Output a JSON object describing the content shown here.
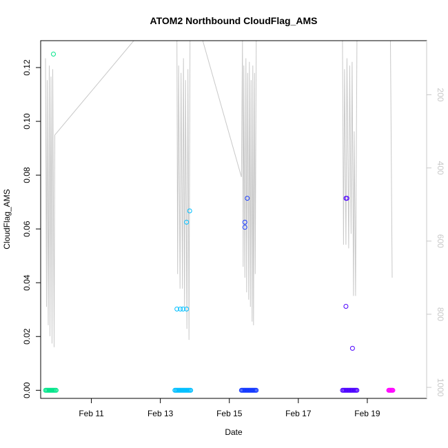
{
  "chart_data": {
    "type": "scatter",
    "title": "ATOM2 Northbound CloudFlag_AMS",
    "xlabel": "Date",
    "ylabel": "CloudFlag_AMS",
    "x_ticks": [
      "Feb 11",
      "Feb 13",
      "Feb 15",
      "Feb 17",
      "Feb 19"
    ],
    "x_tick_days": [
      11,
      13,
      15,
      17,
      19
    ],
    "xlim_days": [
      9.53,
      20.72
    ],
    "ylim": [
      -0.003,
      0.13
    ],
    "y_ticks": [
      "0.00",
      "0.02",
      "0.04",
      "0.06",
      "0.08",
      "0.10",
      "0.12"
    ],
    "y_tick_values": [
      0.0,
      0.02,
      0.04,
      0.06,
      0.08,
      0.1,
      0.12
    ],
    "right_axis": {
      "label": "",
      "reversed": true,
      "ticks": [
        "200",
        "400",
        "600",
        "800",
        "1000"
      ],
      "tick_values": [
        200,
        400,
        600,
        800,
        1000
      ],
      "lim": [
        52,
        1030
      ],
      "color": "#c8c8c8"
    },
    "points": [
      {
        "day": 9.9,
        "value": 0.125,
        "color": "#00e58a"
      },
      {
        "day": 13.48,
        "value": 0.0302,
        "color": "#00bfff"
      },
      {
        "day": 13.58,
        "value": 0.0302,
        "color": "#00bfff"
      },
      {
        "day": 13.66,
        "value": 0.0302,
        "color": "#00bfff"
      },
      {
        "day": 13.76,
        "value": 0.0302,
        "color": "#00bfff"
      },
      {
        "day": 13.76,
        "value": 0.0625,
        "color": "#00bfff"
      },
      {
        "day": 13.85,
        "value": 0.0667,
        "color": "#00bfff"
      },
      {
        "day": 15.45,
        "value": 0.0625,
        "color": "#1338ff"
      },
      {
        "day": 15.45,
        "value": 0.0606,
        "color": "#1338ff"
      },
      {
        "day": 15.52,
        "value": 0.0714,
        "color": "#1338ff"
      },
      {
        "day": 18.38,
        "value": 0.0714,
        "color": "#4c00ff"
      },
      {
        "day": 18.41,
        "value": 0.0714,
        "color": "#4c00ff"
      },
      {
        "day": 18.38,
        "value": 0.0312,
        "color": "#4c00ff"
      },
      {
        "day": 18.57,
        "value": 0.0156,
        "color": "#4c00ff"
      }
    ],
    "zero_runs": [
      {
        "from": 9.67,
        "to": 9.98,
        "color": "#00e58a"
      },
      {
        "from": 13.42,
        "to": 13.88,
        "color": "#00bfff"
      },
      {
        "from": 15.35,
        "to": 15.78,
        "color": "#1338ff"
      },
      {
        "from": 18.28,
        "to": 18.7,
        "color": "#4c00ff"
      },
      {
        "from": 19.62,
        "to": 19.74,
        "color": "#ff00ff"
      }
    ],
    "altitude_color": "#c8c8c8",
    "altitude_trace": [
      [
        9.67,
        100
      ],
      [
        9.7,
        780
      ],
      [
        9.72,
        160
      ],
      [
        9.75,
        830
      ],
      [
        9.78,
        120
      ],
      [
        9.8,
        860
      ],
      [
        9.83,
        150
      ],
      [
        9.86,
        880
      ],
      [
        9.88,
        130
      ],
      [
        9.92,
        890
      ],
      [
        9.94,
        310
      ],
      [
        12.23,
        52
      ],
      [
        13.48,
        52
      ],
      [
        13.5,
        690
      ],
      [
        13.53,
        120
      ],
      [
        13.57,
        730
      ],
      [
        13.6,
        140
      ],
      [
        13.64,
        730
      ],
      [
        13.67,
        100
      ],
      [
        13.7,
        780
      ],
      [
        13.73,
        160
      ],
      [
        13.77,
        840
      ],
      [
        13.8,
        130
      ],
      [
        13.83,
        870
      ],
      [
        13.86,
        52
      ],
      [
        14.23,
        52
      ],
      [
        15.35,
        425
      ],
      [
        15.38,
        52
      ],
      [
        15.4,
        670
      ],
      [
        15.42,
        120
      ],
      [
        15.45,
        700
      ],
      [
        15.48,
        100
      ],
      [
        15.5,
        740
      ],
      [
        15.53,
        140
      ],
      [
        15.56,
        760
      ],
      [
        15.58,
        110
      ],
      [
        15.61,
        780
      ],
      [
        15.63,
        160
      ],
      [
        15.66,
        820
      ],
      [
        15.68,
        120
      ],
      [
        15.7,
        830
      ],
      [
        15.73,
        140
      ],
      [
        15.75,
        690
      ],
      [
        15.78,
        52
      ],
      [
        18.28,
        52
      ],
      [
        18.31,
        610
      ],
      [
        18.34,
        130
      ],
      [
        18.38,
        610
      ],
      [
        18.41,
        100
      ],
      [
        18.46,
        620
      ],
      [
        18.49,
        120
      ],
      [
        18.53,
        580
      ],
      [
        18.56,
        110
      ],
      [
        18.6,
        750
      ],
      [
        18.62,
        300
      ],
      [
        18.66,
        750
      ],
      [
        18.7,
        52
      ],
      [
        19.67,
        52
      ],
      [
        19.72,
        700
      ]
    ]
  }
}
